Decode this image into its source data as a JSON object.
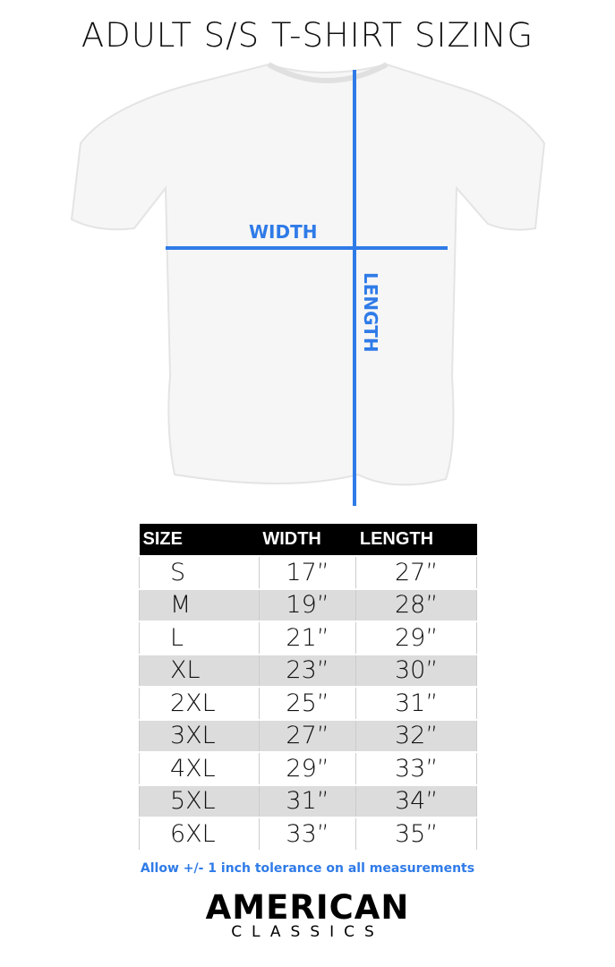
{
  "title": "ADULT S/S T-SHIRT SIZING",
  "labels": {
    "width": "WIDTH",
    "length": "LENGTH"
  },
  "accent": "#2f7be8",
  "table": {
    "headers": [
      "SIZE",
      "WIDTH",
      "LENGTH"
    ],
    "rows": [
      [
        "S",
        "17”",
        "27”"
      ],
      [
        "M",
        "19”",
        "28”"
      ],
      [
        "L",
        "21”",
        "29”"
      ],
      [
        "XL",
        "23”",
        "30”"
      ],
      [
        "2XL",
        "25”",
        "31”"
      ],
      [
        "3XL",
        "27”",
        "32”"
      ],
      [
        "4XL",
        "29”",
        "33”"
      ],
      [
        "5XL",
        "31”",
        "34”"
      ],
      [
        "6XL",
        "33”",
        "35”"
      ]
    ]
  },
  "note": "Allow +/- 1 inch tolerance on all measurements",
  "logo": {
    "line1": "AMERICAN",
    "line2": "CLASSICS"
  }
}
